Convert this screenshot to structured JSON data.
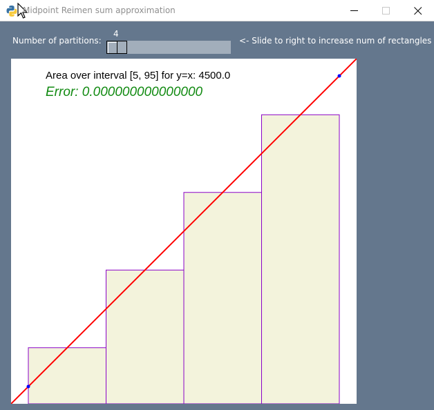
{
  "window": {
    "title": "Midpoint Reimen sum approximation",
    "app_icon": "python-icon"
  },
  "controls": {
    "partitions_label": "Number of partitions:",
    "slider_value": "4",
    "hint": "<- Slide to right to increase num of rectangles"
  },
  "info": {
    "area_text": "Area over interval [5, 95] for y=x: 4500.0",
    "error_text": "Error: 0.000000000000000"
  },
  "colors": {
    "function_line": "#ff0000",
    "rect_fill": "#f3f3dc",
    "rect_stroke": "#8a00c8",
    "endpoint": "#0000ff",
    "error_text": "#118a11"
  },
  "chart_data": {
    "type": "bar",
    "function": "y=x",
    "interval": [
      5,
      95
    ],
    "num_partitions": 4,
    "xlim": [
      0,
      100
    ],
    "ylim": [
      0,
      100
    ],
    "rectangles": [
      {
        "x0": 5,
        "x1": 27.5,
        "height": 16.25
      },
      {
        "x0": 27.5,
        "x1": 50,
        "height": 38.75
      },
      {
        "x0": 50,
        "x1": 72.5,
        "height": 61.25
      },
      {
        "x0": 72.5,
        "x1": 95,
        "height": 83.75
      }
    ],
    "line": {
      "x": [
        0,
        100
      ],
      "y": [
        0,
        100
      ]
    },
    "endpoints": [
      {
        "x": 5,
        "y": 5
      },
      {
        "x": 95,
        "y": 95
      }
    ]
  }
}
